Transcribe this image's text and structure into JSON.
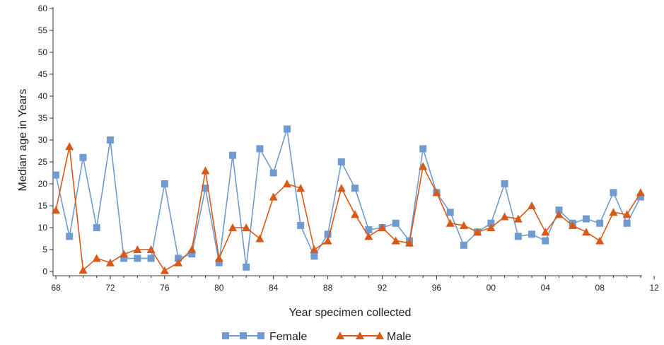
{
  "chart_data": {
    "type": "line",
    "xlabel": "Year specimen collected",
    "ylabel": "Median age in Years",
    "ylim": [
      0,
      60
    ],
    "yticks": [
      0,
      5,
      10,
      15,
      20,
      25,
      30,
      35,
      40,
      45,
      50,
      55,
      60
    ],
    "x": [
      "68",
      "69",
      "70",
      "71",
      "72",
      "73",
      "74",
      "75",
      "76",
      "77",
      "78",
      "79",
      "80",
      "81",
      "82",
      "83",
      "84",
      "85",
      "86",
      "87",
      "88",
      "89",
      "90",
      "91",
      "92",
      "93",
      "94",
      "95",
      "96",
      "97",
      "98",
      "99",
      "00",
      "01",
      "02",
      "03",
      "04",
      "05",
      "06",
      "07",
      "08",
      "09",
      "10",
      "11"
    ],
    "xticks": [
      "68",
      "72",
      "76",
      "80",
      "84",
      "88",
      "92",
      "96",
      "00",
      "04",
      "08",
      "12"
    ],
    "grid": false,
    "legend_position": "bottom-center",
    "series": [
      {
        "name": "Female",
        "color": "#6f9bd1",
        "marker": "square",
        "values": [
          22,
          8,
          26,
          10,
          30,
          3,
          3,
          3,
          20,
          3,
          4,
          19,
          2,
          26.5,
          1,
          28,
          22.5,
          32.5,
          10.5,
          3.5,
          8.5,
          25,
          19,
          9.5,
          10,
          11,
          7,
          28,
          18,
          13.5,
          6,
          9,
          11,
          20,
          8,
          8.5,
          7,
          14,
          11,
          12,
          11,
          18,
          11,
          17
        ]
      },
      {
        "name": "Male",
        "color": "#d85a1a",
        "marker": "triangle",
        "values": [
          14,
          28.5,
          0.3,
          3,
          2,
          4,
          5,
          5,
          0.2,
          2,
          5,
          23,
          3,
          10,
          10,
          7.5,
          17,
          20,
          19,
          5,
          7,
          19,
          13,
          8,
          10,
          7,
          6.5,
          24,
          18,
          11,
          10.5,
          9,
          10,
          12.5,
          12,
          15,
          9,
          13,
          10.5,
          9,
          7,
          13.5,
          13,
          18
        ]
      }
    ]
  }
}
